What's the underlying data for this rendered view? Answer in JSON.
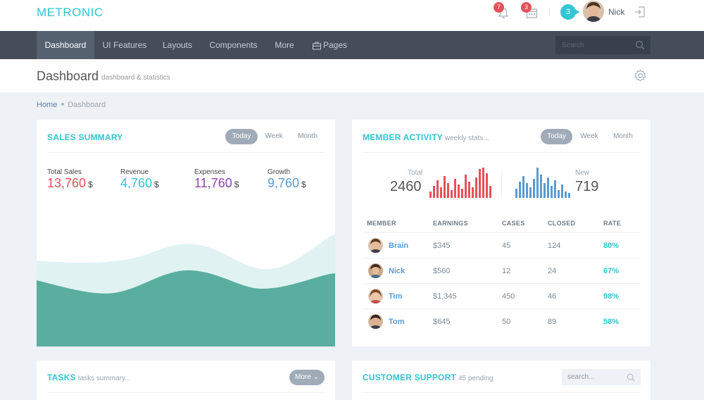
{
  "header": {
    "logo": "METRONIC",
    "notifications_count": "7",
    "calendar_count": "3",
    "chat_count": "3",
    "user_name": "Nick",
    "icons": [
      "bell-icon",
      "calendar-icon",
      "chat-icon",
      "logout-icon"
    ]
  },
  "nav": {
    "items": [
      "Dashboard",
      "UI Features",
      "Layouts",
      "Components",
      "More",
      "Pages"
    ],
    "active": "Dashboard",
    "search_placeholder": "Search"
  },
  "page": {
    "title": "Dashboard",
    "subtitle": "dashboard & statistics"
  },
  "breadcrumb": [
    "Home",
    "Dashboard"
  ],
  "sales_summary": {
    "title": "SALES SUMMARY",
    "tabs": [
      "Today",
      "Week",
      "Month"
    ],
    "active_tab": "Today",
    "stats": [
      {
        "label": "Total Sales",
        "value": "13,760",
        "unit": "$",
        "color": "#e7505a"
      },
      {
        "label": "Revenue",
        "value": "4,760",
        "unit": "$",
        "color": "#32c5d2"
      },
      {
        "label": "Expenses",
        "value": "11,760",
        "unit": "$",
        "color": "#8e44ad"
      },
      {
        "label": "Growth",
        "value": "9,760",
        "unit": "$",
        "color": "#5b9bd1"
      }
    ]
  },
  "member_activity": {
    "title": "MEMBER ACTIVITY",
    "subtitle": "weekly stats...",
    "tabs": [
      "Today",
      "Week",
      "Month"
    ],
    "active_tab": "Today",
    "total_label": "Total",
    "total_value": "2460",
    "new_label": "New",
    "new_value": "719",
    "columns": [
      "MEMBER",
      "EARNINGS",
      "CASES",
      "CLOSED",
      "RATE"
    ],
    "rows": [
      {
        "name": "Brain",
        "earnings": "$345",
        "cases": "45",
        "closed": "124",
        "rate": "80%"
      },
      {
        "name": "Nick",
        "earnings": "$560",
        "cases": "12",
        "closed": "24",
        "rate": "67%"
      },
      {
        "name": "Tim",
        "earnings": "$1,345",
        "cases": "450",
        "closed": "46",
        "rate": "98%"
      },
      {
        "name": "Tom",
        "earnings": "$645",
        "cases": "50",
        "closed": "89",
        "rate": "58%"
      }
    ]
  },
  "tasks": {
    "title": "TASKS",
    "subtitle": "tasks summary...",
    "more_label": "More"
  },
  "customer_support": {
    "title": "CUSTOMER SUPPORT",
    "subtitle": "45 pending",
    "search_placeholder": "search..."
  },
  "colors": {
    "accent": "#32c5d2",
    "nav_bg": "#444d58",
    "red": "#e7505a",
    "blue": "#5b9bd1",
    "purple": "#8e44ad",
    "area_dark": "#5aae9f",
    "area_light": "#e0f3f2"
  }
}
